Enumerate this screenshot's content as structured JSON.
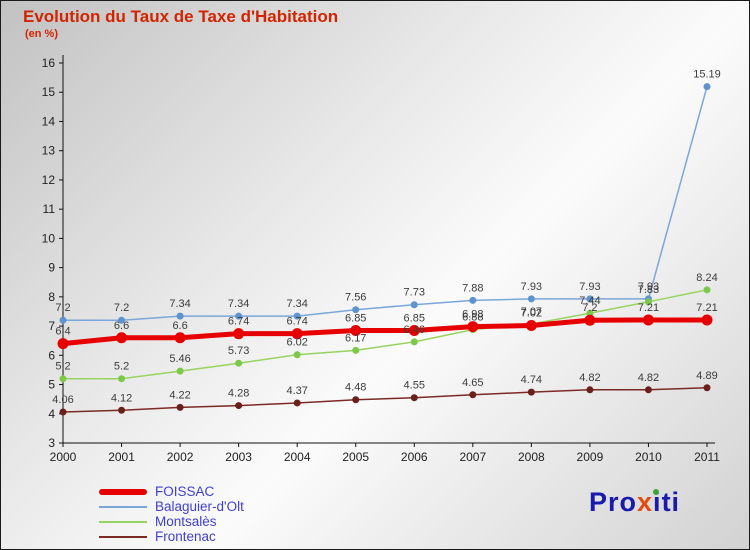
{
  "page": {
    "title": "Evolution du Taux de Taxe d'Habitation",
    "subtitle": "(en %)"
  },
  "colors": {
    "title": "#d32400",
    "legend_text": "#4040d0",
    "axis": "#111111",
    "value_labels": "#3c3c3c"
  },
  "chart_data": {
    "type": "line",
    "title": "Evolution du Taux de Taxe d'Habitation",
    "subtitle": "(en %)",
    "x": [
      2000,
      2001,
      2002,
      2003,
      2004,
      2005,
      2006,
      2007,
      2008,
      2009,
      2010,
      2011
    ],
    "ylim": [
      3,
      16
    ],
    "yticks": [
      3,
      4,
      5,
      6,
      7,
      8,
      9,
      10,
      11,
      12,
      13,
      14,
      15,
      16
    ],
    "grid": false,
    "legend_position": "bottom-left",
    "draw_order": [
      1,
      2,
      3,
      0
    ],
    "series": [
      {
        "name": "FOISSAC",
        "color": "#e60000",
        "marker_color": "#e60000",
        "line_width": 5,
        "marker_radius": 5.5,
        "values": [
          6.4,
          6.6,
          6.6,
          6.74,
          6.74,
          6.85,
          6.85,
          6.98,
          7.02,
          7.2,
          7.21,
          7.21
        ]
      },
      {
        "name": "Balaguier-d'Olt",
        "color": "#7aa7d9",
        "marker_color": "#5e93cf",
        "line_width": 1.5,
        "marker_radius": 3.5,
        "values": [
          7.2,
          7.2,
          7.34,
          7.34,
          7.34,
          7.56,
          7.73,
          7.88,
          7.93,
          7.93,
          7.93,
          15.19
        ]
      },
      {
        "name": "Montsalès",
        "color": "#98d35f",
        "marker_color": "#7cc84a",
        "line_width": 1.5,
        "marker_radius": 3.5,
        "values": [
          5.2,
          5.2,
          5.46,
          5.73,
          6.02,
          6.17,
          6.46,
          6.88,
          7.07,
          7.44,
          7.83,
          8.24
        ]
      },
      {
        "name": "Frontenac",
        "color": "#7b2a24",
        "marker_color": "#6b1f1a",
        "line_width": 1.5,
        "marker_radius": 3.5,
        "values": [
          4.06,
          4.12,
          4.22,
          4.28,
          4.37,
          4.48,
          4.55,
          4.65,
          4.74,
          4.82,
          4.82,
          4.89
        ]
      }
    ]
  },
  "logo": {
    "part1": "Pro",
    "part2": "x",
    "part3": "i",
    "part4": "ti",
    "colors": {
      "blue": "#1a1aae",
      "orange": "#e8480e",
      "green": "#3aa53a"
    }
  }
}
